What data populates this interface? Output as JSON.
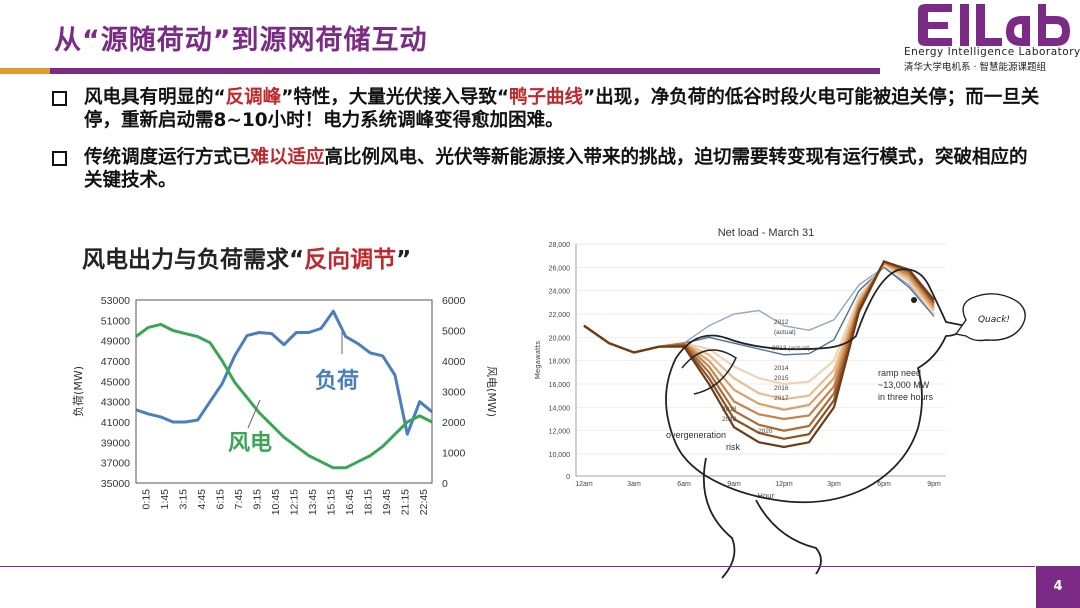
{
  "slide": {
    "title": "从“源随荷动”到源网荷储互动",
    "page_number": "4"
  },
  "logo": {
    "mark": "EILab",
    "en": "Energy Intelligence Laboratory",
    "cn": "清华大学电机系 · 智慧能源课题组"
  },
  "bullets": [
    {
      "parts": [
        "风电具有明显的“",
        "反调峰",
        "”特性，大量光伏接入导致“",
        "鸭子曲线",
        "”出现，净负荷的低谷时段火电可能被迫关停；而一旦关停，重新启动需8~10小时！电力系统调峰变得愈加困难。"
      ]
    },
    {
      "parts": [
        "传统调度运行方式已",
        "难以适应",
        "高比例风电、光伏等新能源接入带来的挑战，迫切需要转变现有运行模式，突破相应的关键技术。"
      ]
    }
  ],
  "chart_heading": {
    "prefix": "风电出力与负荷需求“",
    "highlight": "反向调节",
    "suffix": "”"
  },
  "colors": {
    "accent": "#7b2b85",
    "orange": "#e29a2e",
    "red": "#c0282d",
    "load_line": "#4a7ebf",
    "wind_line": "#3aa655"
  },
  "chart_data": [
    {
      "type": "line",
      "ylabel": "负荷(MW)",
      "y2label": "风电(MW)",
      "ylim": [
        35000,
        53000
      ],
      "y2lim": [
        0,
        6000
      ],
      "yticks": [
        "53000",
        "51000",
        "49000",
        "47000",
        "45000",
        "43000",
        "41000",
        "39000",
        "37000",
        "35000"
      ],
      "y2ticks": [
        "6000",
        "5000",
        "4000",
        "3000",
        "2000",
        "1000",
        "0"
      ],
      "x_ticks": [
        "0:15",
        "1:45",
        "3:15",
        "4:45",
        "6:15",
        "7:45",
        "9:15",
        "10:45",
        "12:15",
        "13:45",
        "15:15",
        "16:45",
        "18:15",
        "19:45",
        "21:15",
        "22:45"
      ],
      "grid": false,
      "series": [
        {
          "name": "负荷",
          "axis": "left",
          "x": [
            0,
            1,
            2,
            3,
            4,
            5,
            6,
            7,
            8,
            9,
            10,
            11,
            12,
            13,
            14,
            15,
            16,
            17,
            18,
            19,
            20,
            21,
            22,
            23,
            24
          ],
          "values": [
            42200,
            41800,
            41500,
            41000,
            41000,
            41200,
            43000,
            44800,
            47500,
            49500,
            49800,
            49700,
            48600,
            49800,
            49800,
            50200,
            51900,
            49400,
            48700,
            47800,
            47500,
            45600,
            39800,
            43000,
            42000
          ]
        },
        {
          "name": "风电",
          "axis": "right",
          "x": [
            0,
            1,
            2,
            3,
            4,
            5,
            6,
            7,
            8,
            9,
            10,
            11,
            12,
            13,
            14,
            15,
            16,
            17,
            18,
            19,
            20,
            21,
            22,
            23,
            24
          ],
          "values": [
            4800,
            5100,
            5200,
            5000,
            4900,
            4800,
            4600,
            4000,
            3300,
            2800,
            2300,
            1900,
            1500,
            1200,
            900,
            700,
            500,
            500,
            700,
            900,
            1200,
            1600,
            2000,
            2200,
            2000
          ]
        }
      ],
      "annotations": [
        "负荷",
        "风电"
      ]
    },
    {
      "type": "line",
      "title": "Net load - March 31",
      "ylabel": "Megawatts",
      "xlabel": "Hour",
      "ylim": [
        0,
        28000
      ],
      "yticks": [
        "28,000",
        "26,000",
        "24,000",
        "22,000",
        "20,000",
        "18,000",
        "16,000",
        "14,000",
        "12,000",
        "10,000",
        "0"
      ],
      "x_ticks": [
        "12am",
        "3am",
        "6am",
        "9am",
        "12pm",
        "3pm",
        "6pm",
        "9pm"
      ],
      "year_labels": [
        "2012",
        "(actual)",
        "2013 (actual)",
        "2014",
        "2015",
        "2016",
        "2017",
        "2018",
        "2019",
        "2020"
      ],
      "annotations": [
        "overgeneration risk",
        "ramp need ~13,000 MW in three hours",
        "Quack!"
      ],
      "series": [
        {
          "name": "2012",
          "values": [
            21000,
            19500,
            18700,
            19200,
            19500,
            21000,
            22000,
            22300,
            21000,
            20600,
            21500,
            24500,
            26000,
            24500,
            22000
          ]
        },
        {
          "name": "2013",
          "values": [
            21000,
            19500,
            18700,
            19200,
            19500,
            20000,
            19500,
            19000,
            18500,
            18600,
            19800,
            24000,
            26000,
            24300,
            21800
          ]
        },
        {
          "name": "2014",
          "values": [
            21000,
            19500,
            18700,
            19200,
            19500,
            19000,
            17500,
            16500,
            16000,
            16200,
            18000,
            23500,
            26200,
            24800,
            22000
          ]
        },
        {
          "name": "2015",
          "values": [
            21000,
            19500,
            18700,
            19200,
            19500,
            18500,
            16500,
            15200,
            14700,
            15000,
            17200,
            23200,
            26300,
            25000,
            22300
          ]
        },
        {
          "name": "2016",
          "values": [
            21000,
            19500,
            18700,
            19200,
            19500,
            18000,
            15500,
            14300,
            13800,
            14200,
            16500,
            23000,
            26400,
            25200,
            22500
          ]
        },
        {
          "name": "2017",
          "values": [
            21000,
            19500,
            18700,
            19200,
            19500,
            17500,
            14500,
            13400,
            13000,
            13300,
            15800,
            22800,
            26400,
            25400,
            22700
          ]
        },
        {
          "name": "2018",
          "values": [
            21000,
            19500,
            18700,
            19200,
            19400,
            17000,
            13700,
            12500,
            12000,
            12400,
            15200,
            22600,
            26500,
            25600,
            22900
          ]
        },
        {
          "name": "2019",
          "values": [
            21000,
            19500,
            18700,
            19200,
            19300,
            16500,
            13000,
            11800,
            11300,
            11700,
            14600,
            22400,
            26500,
            25700,
            23000
          ]
        },
        {
          "name": "2020",
          "values": [
            21000,
            19500,
            18700,
            19200,
            19200,
            16000,
            12300,
            11000,
            10600,
            11000,
            14000,
            22200,
            26500,
            25800,
            23200
          ]
        }
      ]
    }
  ]
}
